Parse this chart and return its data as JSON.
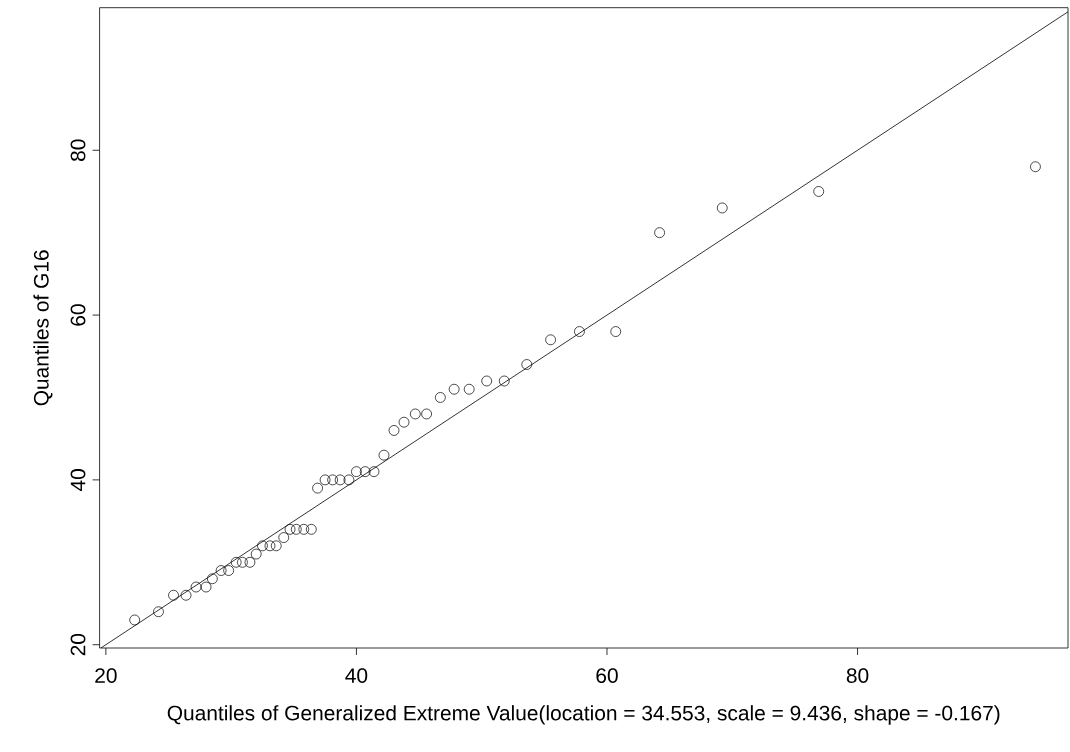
{
  "chart_data": {
    "type": "scatter",
    "xlabel": "Quantiles of Generalized Extreme Value(location = 34.553, scale = 9.436, shape = -0.167)",
    "ylabel": "Quantiles of G16",
    "series": [
      {
        "marker": "circle",
        "color": "#000000",
        "x": [
          22.3,
          24.2,
          25.4,
          26.4,
          27.2,
          28.0,
          28.5,
          29.2,
          29.8,
          30.4,
          30.9,
          31.5,
          32.0,
          32.5,
          33.1,
          33.6,
          34.2,
          34.7,
          35.2,
          35.8,
          36.4,
          36.9,
          37.5,
          38.1,
          38.7,
          39.4,
          40.0,
          40.7,
          41.4,
          42.2,
          43.0,
          43.8,
          44.7,
          45.6,
          46.7,
          47.8,
          49.0,
          50.4,
          51.8,
          53.6,
          55.5,
          57.8,
          60.7,
          64.2,
          69.2,
          76.9,
          94.2
        ],
        "values": [
          23,
          24,
          26,
          26,
          27,
          27,
          28,
          29,
          29,
          30,
          30,
          30,
          31,
          32,
          32,
          32,
          33,
          34,
          34,
          34,
          34,
          39,
          40,
          40,
          40,
          40,
          41,
          41,
          41,
          43,
          46,
          47,
          48,
          48,
          50,
          51,
          51,
          52,
          52,
          54,
          57,
          58,
          58,
          70,
          73,
          75,
          78
        ]
      },
      {
        "type": "line",
        "marker": "none",
        "color": "#000000",
        "x": [
          19.6,
          96.8
        ],
        "values": [
          19.6,
          96.8
        ]
      }
    ],
    "xlim": [
      19.5,
      96.8
    ],
    "ylim": [
      19.6,
      97.3
    ],
    "xticks": [
      20,
      40,
      60,
      80
    ],
    "yticks": [
      20,
      40,
      60,
      80
    ],
    "grid": false
  }
}
